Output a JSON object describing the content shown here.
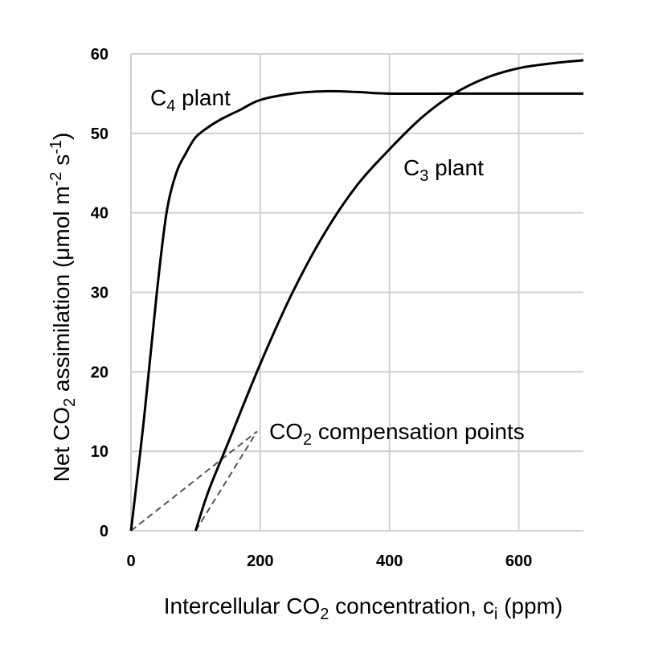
{
  "chart_data": {
    "type": "line",
    "xlabel": {
      "pre": "Intercellular CO",
      "sub": "2",
      "post": " concentration, c",
      "sub2": "i",
      "post2": " (ppm)"
    },
    "ylabel": {
      "pre": "Net CO",
      "sub": "2",
      "mid": " assimilation (μmol m",
      "sup": "-2",
      "mid2": " s",
      "sup2": "-1",
      "post": ")"
    },
    "xlim": [
      0,
      700
    ],
    "ylim": [
      0,
      60
    ],
    "x_ticks": [
      0,
      200,
      400,
      600
    ],
    "x_tick_labels": [
      "0",
      "200",
      "400",
      "600"
    ],
    "y_ticks": [
      0,
      10,
      20,
      30,
      40,
      50,
      60
    ],
    "y_tick_labels": [
      "0",
      "10",
      "20",
      "30",
      "40",
      "50",
      "60"
    ],
    "grid": true,
    "series": [
      {
        "name": {
          "pre": "C",
          "sub": "4",
          "post": " plant"
        },
        "points": [
          [
            0,
            0
          ],
          [
            20,
            14
          ],
          [
            40,
            30
          ],
          [
            55,
            40
          ],
          [
            70,
            45
          ],
          [
            85,
            47.5
          ],
          [
            100,
            49.5
          ],
          [
            120,
            50.8
          ],
          [
            140,
            51.8
          ],
          [
            170,
            53
          ],
          [
            200,
            54.2
          ],
          [
            250,
            55
          ],
          [
            300,
            55.3
          ],
          [
            350,
            55.2
          ],
          [
            400,
            55
          ],
          [
            500,
            55
          ],
          [
            600,
            55
          ],
          [
            700,
            55
          ]
        ]
      },
      {
        "name": {
          "pre": "C",
          "sub": "3",
          "post": " plant"
        },
        "points": [
          [
            100,
            0
          ],
          [
            120,
            5
          ],
          [
            150,
            11
          ],
          [
            200,
            21
          ],
          [
            250,
            30
          ],
          [
            300,
            37.5
          ],
          [
            350,
            43.5
          ],
          [
            400,
            48
          ],
          [
            450,
            52
          ],
          [
            500,
            55
          ],
          [
            550,
            57
          ],
          [
            600,
            58.2
          ],
          [
            650,
            58.8
          ],
          [
            700,
            59.2
          ]
        ]
      }
    ],
    "annotations": [
      {
        "pre": "CO",
        "sub": "2",
        "post": " compensation points"
      }
    ],
    "compensation_lines": [
      [
        [
          0,
          0
        ],
        [
          195,
          12.5
        ]
      ],
      [
        [
          100,
          0
        ],
        [
          195,
          12.5
        ]
      ]
    ]
  }
}
